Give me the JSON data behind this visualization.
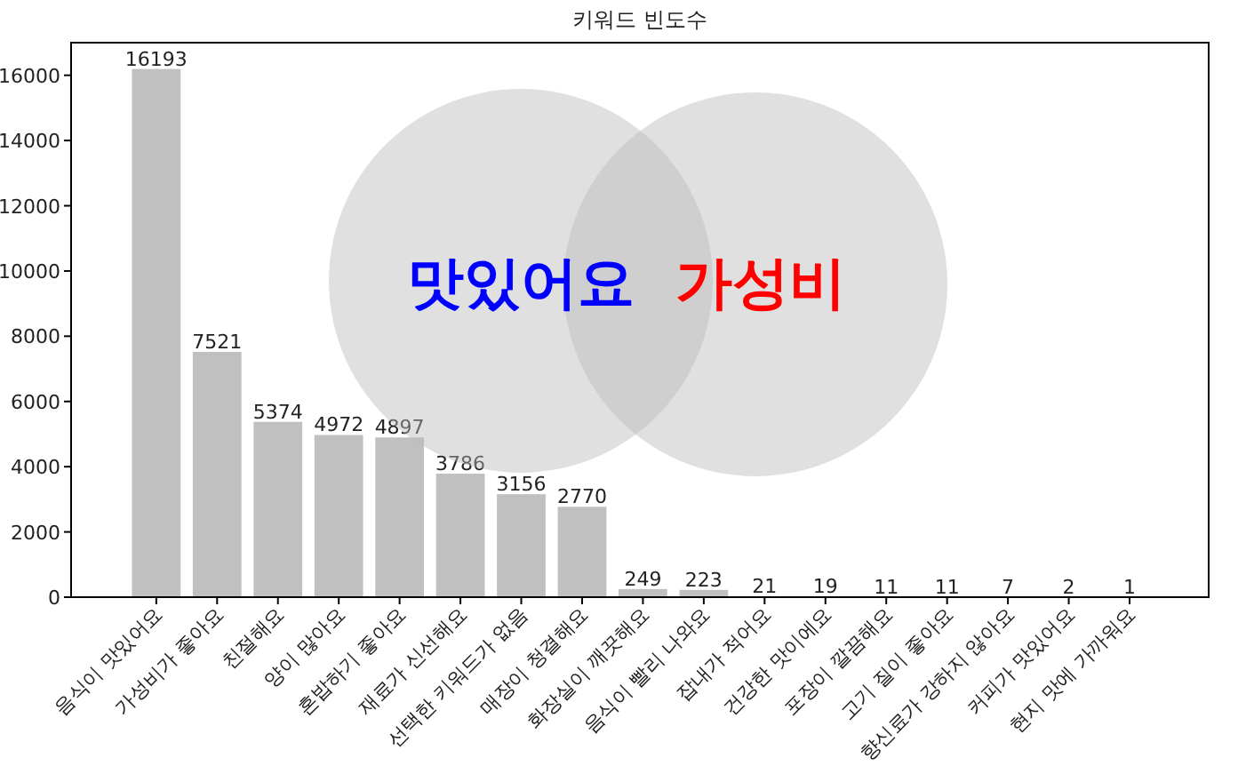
{
  "chart_data": {
    "type": "bar",
    "title": "키워드 빈도수",
    "categories": [
      "음식이 맛있어요",
      "가성비가 좋아요",
      "친절해요",
      "양이 많아요",
      "혼밥하기 좋아요",
      "재료가 신선해요",
      "선택한 키워드가 없음",
      "매장이 청결해요",
      "화장실이 깨끗해요",
      "음식이 빨리 나와요",
      "잡내가 적어요",
      "건강한 맛이에요",
      "포장이 깔끔해요",
      "고기 질이 좋아요",
      "향신료가 강하지 않아요",
      "커피가 맛있어요",
      "현지 맛에 가까워요"
    ],
    "values": [
      16193,
      7521,
      5374,
      4972,
      4897,
      3786,
      3156,
      2770,
      249,
      223,
      21,
      19,
      11,
      11,
      7,
      2,
      1
    ],
    "color": "#c0c0c0",
    "data_labels": true,
    "ylim": [
      0,
      17000
    ],
    "yticks": [
      0,
      2000,
      4000,
      6000,
      8000,
      10000,
      12000,
      14000,
      16000
    ],
    "annotations": [
      "맛있어요",
      "가성비"
    ]
  }
}
